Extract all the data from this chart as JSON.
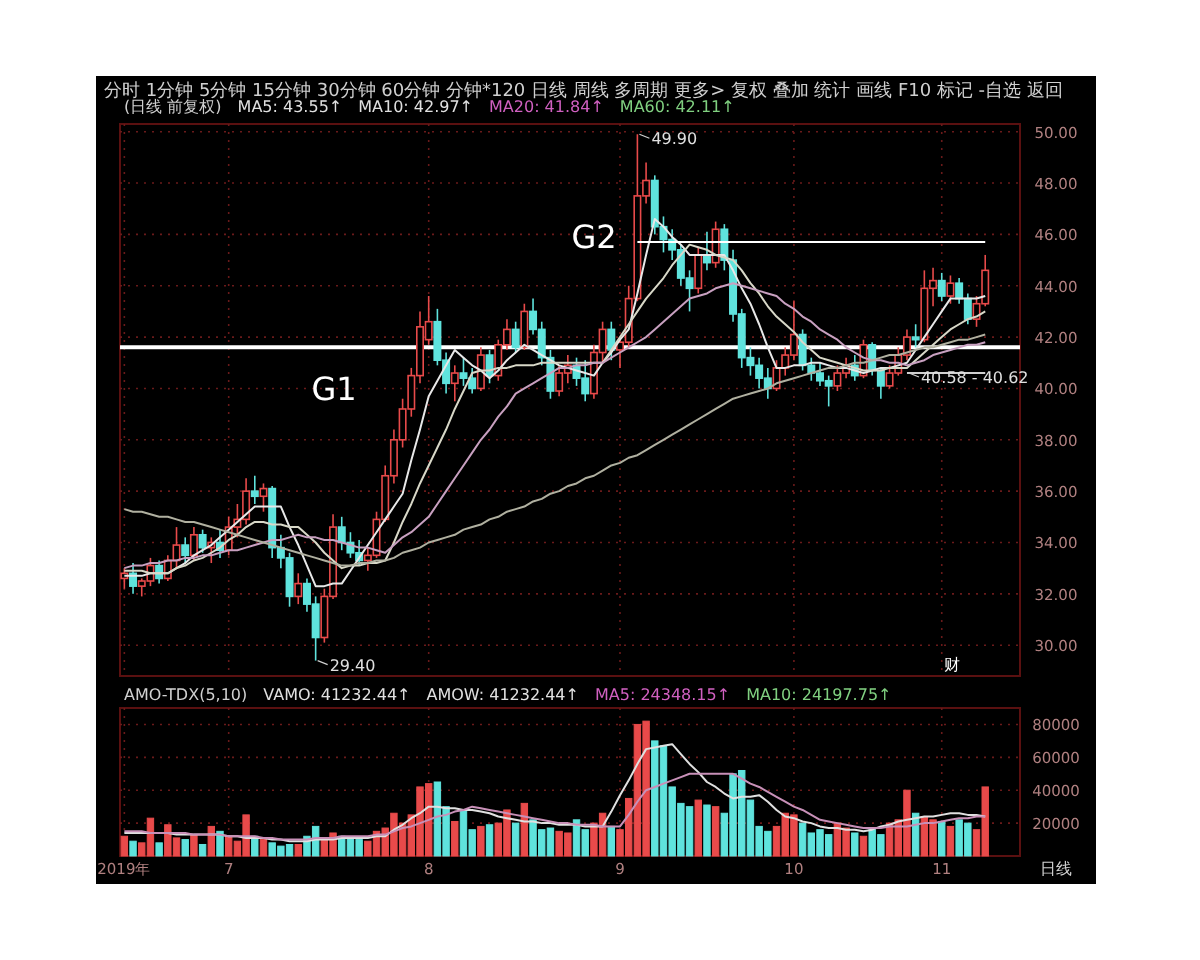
{
  "chart_data": [
    {
      "type": "candlestick",
      "subtitle": "分时 1分钟 5分钟 15分钟 30分钟 60分钟 分钟*120 日线 周线 多周期 更多> 复权 叠加 统计 画线 F10 标记 -自选 返回",
      "title": "(日线 前复权)",
      "annotations": [
        "MA5: 43.55↑",
        "MA10: 42.97↑",
        "MA20: 41.84↑",
        "MA60: 42.11↑",
        "G1",
        "G2",
        "财",
        "49.90",
        "29.40",
        "40.58 - 40.62"
      ],
      "categories": [
        null,
        null,
        null,
        null,
        null,
        null,
        null,
        null,
        null,
        null,
        null,
        null,
        null,
        null,
        null,
        null,
        null,
        null,
        null,
        null,
        null,
        null,
        null,
        null,
        null,
        null,
        null,
        null,
        null,
        null,
        null,
        null,
        null,
        null,
        null,
        null,
        null,
        null,
        null,
        null,
        null,
        null,
        null,
        null,
        null,
        null,
        null,
        null,
        null,
        null,
        null,
        null,
        null,
        null,
        null,
        null,
        null,
        null,
        null,
        null,
        null,
        null,
        null,
        null,
        null,
        null,
        null,
        null,
        null,
        null,
        null,
        null,
        null,
        null,
        null,
        null,
        null,
        null,
        null,
        null,
        null,
        null,
        null,
        null,
        null,
        null,
        null,
        null,
        null,
        null,
        null,
        null,
        null,
        null,
        null,
        null,
        null,
        null,
        null,
        null
      ],
      "ohlc": [
        [
          32.6,
          33.0,
          32.2,
          32.8
        ],
        [
          32.8,
          33.2,
          32.0,
          32.3
        ],
        [
          32.3,
          32.6,
          31.9,
          32.5
        ],
        [
          32.5,
          33.4,
          32.3,
          33.1
        ],
        [
          33.1,
          33.3,
          32.4,
          32.6
        ],
        [
          32.6,
          33.5,
          32.5,
          33.3
        ],
        [
          33.3,
          34.6,
          33.0,
          33.9
        ],
        [
          33.9,
          34.2,
          33.2,
          33.5
        ],
        [
          33.5,
          34.6,
          33.3,
          34.3
        ],
        [
          34.3,
          34.5,
          33.6,
          33.8
        ],
        [
          33.8,
          34.2,
          33.2,
          34.0
        ],
        [
          34.0,
          34.5,
          33.4,
          33.7
        ],
        [
          33.7,
          35.0,
          33.5,
          34.6
        ],
        [
          34.6,
          35.5,
          34.2,
          34.9
        ],
        [
          34.9,
          36.5,
          34.7,
          36.0
        ],
        [
          36.0,
          36.6,
          35.5,
          35.8
        ],
        [
          35.8,
          36.3,
          35.2,
          36.1
        ],
        [
          36.1,
          36.2,
          33.4,
          33.8
        ],
        [
          33.8,
          34.3,
          33.0,
          33.4
        ],
        [
          33.4,
          33.6,
          31.5,
          31.9
        ],
        [
          31.9,
          32.8,
          31.6,
          32.4
        ],
        [
          32.4,
          32.6,
          31.3,
          31.6
        ],
        [
          31.6,
          31.9,
          29.4,
          30.3
        ],
        [
          30.3,
          32.2,
          30.1,
          31.9
        ],
        [
          31.9,
          35.1,
          31.8,
          34.6
        ],
        [
          34.6,
          35.0,
          33.7,
          34.0
        ],
        [
          34.0,
          34.4,
          33.4,
          33.6
        ],
        [
          33.6,
          34.1,
          33.1,
          33.3
        ],
        [
          33.3,
          33.8,
          32.9,
          33.5
        ],
        [
          33.5,
          35.2,
          33.4,
          34.9
        ],
        [
          34.9,
          37.0,
          34.8,
          36.6
        ],
        [
          36.6,
          38.4,
          36.3,
          38.0
        ],
        [
          38.0,
          39.6,
          37.7,
          39.2
        ],
        [
          39.2,
          40.8,
          38.9,
          40.5
        ],
        [
          40.5,
          43.0,
          40.2,
          42.4
        ],
        [
          41.9,
          43.6,
          41.7,
          42.6
        ],
        [
          42.6,
          43.1,
          40.9,
          41.1
        ],
        [
          41.1,
          41.4,
          39.8,
          40.2
        ],
        [
          40.2,
          40.9,
          39.5,
          40.6
        ],
        [
          40.6,
          41.2,
          40.1,
          40.4
        ],
        [
          40.4,
          40.8,
          39.8,
          40.0
        ],
        [
          40.0,
          41.6,
          39.9,
          41.3
        ],
        [
          41.3,
          41.5,
          40.2,
          40.5
        ],
        [
          40.5,
          41.9,
          40.3,
          41.7
        ],
        [
          41.7,
          42.7,
          41.5,
          42.3
        ],
        [
          42.3,
          42.6,
          41.4,
          41.6
        ],
        [
          41.6,
          43.3,
          41.5,
          43.0
        ],
        [
          43.0,
          43.5,
          42.1,
          42.3
        ],
        [
          42.3,
          42.6,
          40.9,
          41.2
        ],
        [
          41.2,
          41.5,
          39.6,
          39.9
        ],
        [
          39.9,
          40.9,
          39.7,
          40.6
        ],
        [
          40.6,
          41.3,
          40.2,
          40.9
        ],
        [
          40.9,
          41.2,
          40.1,
          40.4
        ],
        [
          40.4,
          41.1,
          39.5,
          39.8
        ],
        [
          39.8,
          41.7,
          39.6,
          41.4
        ],
        [
          41.4,
          42.6,
          41.0,
          42.3
        ],
        [
          42.3,
          42.6,
          41.1,
          41.5
        ],
        [
          41.5,
          42.0,
          40.8,
          41.8
        ],
        [
          41.8,
          44.0,
          41.6,
          43.5
        ],
        [
          43.5,
          49.9,
          43.4,
          47.5
        ],
        [
          47.5,
          48.8,
          47.2,
          48.1
        ],
        [
          48.1,
          48.3,
          46.0,
          46.3
        ],
        [
          46.3,
          46.7,
          45.3,
          45.8
        ],
        [
          45.8,
          46.2,
          45.0,
          45.4
        ],
        [
          45.4,
          45.6,
          44.0,
          44.3
        ],
        [
          44.3,
          44.6,
          43.0,
          43.9
        ],
        [
          43.9,
          45.5,
          43.7,
          45.2
        ],
        [
          45.2,
          46.1,
          44.6,
          44.9
        ],
        [
          44.9,
          46.5,
          44.7,
          46.2
        ],
        [
          46.2,
          46.4,
          44.6,
          45.0
        ],
        [
          45.0,
          45.4,
          42.6,
          42.9
        ],
        [
          42.9,
          43.1,
          40.8,
          41.2
        ],
        [
          41.2,
          41.6,
          40.5,
          40.9
        ],
        [
          40.9,
          41.2,
          40.0,
          40.4
        ],
        [
          40.4,
          40.8,
          39.6,
          40.0
        ],
        [
          40.0,
          41.1,
          39.9,
          40.8
        ],
        [
          40.8,
          41.6,
          40.5,
          41.3
        ],
        [
          41.3,
          43.4,
          41.1,
          42.1
        ],
        [
          42.1,
          42.3,
          40.7,
          40.9
        ],
        [
          40.9,
          41.2,
          40.3,
          40.6
        ],
        [
          40.6,
          41.0,
          40.1,
          40.3
        ],
        [
          40.3,
          40.5,
          39.3,
          40.1
        ],
        [
          40.1,
          40.9,
          39.9,
          40.6
        ],
        [
          40.6,
          41.2,
          40.4,
          40.9
        ],
        [
          40.9,
          41.3,
          40.3,
          40.5
        ],
        [
          40.5,
          41.9,
          40.4,
          41.7
        ],
        [
          41.7,
          41.8,
          40.5,
          40.7
        ],
        [
          40.7,
          40.8,
          39.6,
          40.1
        ],
        [
          40.1,
          40.9,
          40.0,
          40.6
        ],
        [
          40.6,
          41.6,
          40.5,
          41.3
        ],
        [
          41.3,
          42.3,
          41.1,
          42.0
        ],
        [
          42.0,
          42.5,
          41.6,
          41.9
        ],
        [
          41.9,
          44.6,
          41.8,
          43.9
        ],
        [
          43.9,
          44.7,
          43.2,
          44.2
        ],
        [
          44.2,
          44.5,
          43.4,
          43.6
        ],
        [
          43.6,
          44.4,
          43.3,
          44.1
        ],
        [
          44.1,
          44.3,
          43.3,
          43.5
        ],
        [
          43.5,
          43.7,
          42.5,
          42.7
        ],
        [
          42.7,
          43.6,
          42.4,
          43.3
        ],
        [
          43.3,
          45.2,
          43.2,
          44.6
        ]
      ],
      "colors": [
        "#e84a4a",
        "#5fe3dd",
        "#e84a4a",
        "#e84a4a",
        "#5fe3dd",
        "#e84a4a",
        "#e84a4a",
        "#5fe3dd",
        "#e84a4a",
        "#5fe3dd",
        "#e84a4a",
        "#5fe3dd",
        "#e84a4a",
        "#e84a4a",
        "#e84a4a",
        "#5fe3dd",
        "#e84a4a",
        "#5fe3dd",
        "#5fe3dd",
        "#5fe3dd",
        "#e84a4a",
        "#5fe3dd",
        "#5fe3dd",
        "#e84a4a",
        "#e84a4a",
        "#5fe3dd",
        "#5fe3dd",
        "#5fe3dd",
        "#e84a4a",
        "#e84a4a",
        "#e84a4a",
        "#e84a4a",
        "#e84a4a",
        "#e84a4a",
        "#e84a4a",
        "#e84a4a",
        "#5fe3dd",
        "#5fe3dd",
        "#e84a4a",
        "#5fe3dd",
        "#5fe3dd",
        "#e84a4a",
        "#5fe3dd",
        "#e84a4a",
        "#e84a4a",
        "#5fe3dd",
        "#e84a4a",
        "#5fe3dd",
        "#5fe3dd",
        "#5fe3dd",
        "#e84a4a",
        "#e84a4a",
        "#5fe3dd",
        "#5fe3dd",
        "#e84a4a",
        "#e84a4a",
        "#5fe3dd",
        "#e84a4a",
        "#e84a4a",
        "#e84a4a",
        "#e84a4a",
        "#5fe3dd",
        "#5fe3dd",
        "#5fe3dd",
        "#5fe3dd",
        "#5fe3dd",
        "#e84a4a",
        "#5fe3dd",
        "#e84a4a",
        "#5fe3dd",
        "#5fe3dd",
        "#5fe3dd",
        "#5fe3dd",
        "#5fe3dd",
        "#5fe3dd",
        "#e84a4a",
        "#e84a4a",
        "#e84a4a",
        "#5fe3dd",
        "#5fe3dd",
        "#5fe3dd",
        "#5fe3dd",
        "#e84a4a",
        "#e84a4a",
        "#5fe3dd",
        "#e84a4a",
        "#5fe3dd",
        "#5fe3dd",
        "#e84a4a",
        "#e84a4a",
        "#e84a4a",
        "#5fe3dd",
        "#e84a4a",
        "#e84a4a",
        "#5fe3dd",
        "#e84a4a",
        "#5fe3dd",
        "#5fe3dd",
        "#e84a4a",
        "#e84a4a"
      ],
      "series": [
        {
          "type": "line",
          "color": "#e8e8e8",
          "values": [
            32.7,
            32.7,
            32.7,
            32.8,
            32.8,
            32.8,
            33.0,
            33.2,
            33.5,
            33.7,
            33.9,
            34.2,
            34.5,
            34.8,
            35.1,
            35.4,
            35.4,
            35.4,
            35.4,
            34.6,
            33.9,
            33.1,
            32.3,
            32.3,
            32.4,
            32.4,
            32.9,
            33.4,
            33.9,
            34.4,
            34.9,
            35.4,
            35.9,
            37.2,
            38.4,
            39.7,
            40.3,
            40.9,
            41.5,
            41.2,
            40.9,
            40.7,
            40.4,
            40.7,
            41.1,
            41.4,
            41.7,
            41.5,
            41.3,
            41.1,
            40.9,
            40.8,
            40.7,
            40.6,
            40.5,
            41.0,
            41.4,
            41.9,
            42.3,
            43.7,
            45.2,
            46.6,
            46.3,
            45.9,
            45.6,
            45.2,
            45.2,
            45.2,
            45.2,
            45.2,
            44.6,
            43.9,
            43.3,
            42.5,
            41.6,
            40.8,
            40.8,
            40.9,
            40.9,
            41.0,
            41.0,
            40.9,
            40.8,
            40.8,
            40.7,
            40.6,
            40.7,
            40.8,
            40.8,
            40.9,
            41.0,
            41.5,
            42.0,
            42.5,
            43.0,
            43.5,
            43.5,
            43.5,
            43.5,
            43.6
          ]
        },
        {
          "type": "line",
          "color": "#d8d8c8",
          "values": [
            32.9,
            32.9,
            32.9,
            32.8,
            32.8,
            32.8,
            33.0,
            33.1,
            33.3,
            33.4,
            33.6,
            33.8,
            34.1,
            34.3,
            34.6,
            34.8,
            34.8,
            34.7,
            34.7,
            34.6,
            34.6,
            34.3,
            34.0,
            33.6,
            33.3,
            33.0,
            33.1,
            33.1,
            33.2,
            33.2,
            33.3,
            34.0,
            34.8,
            35.5,
            36.3,
            37.0,
            37.7,
            38.4,
            39.2,
            39.9,
            40.6,
            40.7,
            40.7,
            40.8,
            40.8,
            40.9,
            40.9,
            40.9,
            41.0,
            41.0,
            41.0,
            41.0,
            41.0,
            41.0,
            41.0,
            41.0,
            41.5,
            42.0,
            42.5,
            43.0,
            43.5,
            43.9,
            44.3,
            44.8,
            45.2,
            45.6,
            45.5,
            45.4,
            45.2,
            45.1,
            45.0,
            44.6,
            44.1,
            43.7,
            43.2,
            42.8,
            42.5,
            42.2,
            41.8,
            41.5,
            41.2,
            41.1,
            41.0,
            40.9,
            40.8,
            40.7,
            40.7,
            40.7,
            40.8,
            40.8,
            40.8,
            41.1,
            41.4,
            41.7,
            42.0,
            42.3,
            42.5,
            42.7,
            42.8,
            43.0
          ]
        },
        {
          "type": "line",
          "color": "#c8a0c0",
          "values": [
            33.0,
            33.1,
            33.1,
            33.2,
            33.2,
            33.3,
            33.3,
            33.4,
            33.4,
            33.5,
            33.5,
            33.6,
            33.7,
            33.7,
            33.8,
            33.9,
            34.0,
            34.1,
            34.1,
            34.2,
            34.3,
            34.2,
            34.2,
            34.1,
            34.1,
            34.0,
            33.9,
            33.8,
            33.8,
            33.7,
            33.6,
            33.9,
            34.2,
            34.4,
            34.7,
            35.0,
            35.5,
            36.0,
            36.5,
            37.0,
            37.5,
            38.0,
            38.4,
            38.9,
            39.3,
            39.8,
            40.0,
            40.2,
            40.4,
            40.6,
            40.8,
            40.8,
            40.9,
            40.9,
            41.0,
            41.0,
            41.2,
            41.4,
            41.6,
            41.8,
            42.0,
            42.3,
            42.6,
            42.9,
            43.2,
            43.5,
            43.6,
            43.7,
            43.9,
            44.0,
            44.1,
            44.0,
            43.9,
            43.8,
            43.7,
            43.6,
            43.3,
            43.1,
            42.8,
            42.6,
            42.3,
            42.1,
            41.9,
            41.6,
            41.4,
            41.2,
            41.1,
            41.1,
            41.0,
            41.0,
            40.9,
            41.0,
            41.1,
            41.3,
            41.4,
            41.5,
            41.6,
            41.7,
            41.7,
            41.8
          ]
        },
        {
          "type": "line",
          "color": "#b0b0a0",
          "values": [
            35.3,
            35.2,
            35.2,
            35.1,
            35.0,
            35.0,
            34.9,
            34.8,
            34.8,
            34.7,
            34.6,
            34.5,
            34.4,
            34.3,
            34.2,
            34.1,
            34.0,
            33.9,
            33.8,
            33.7,
            33.6,
            33.5,
            33.4,
            33.3,
            33.2,
            33.1,
            33.1,
            33.2,
            33.2,
            33.3,
            33.3,
            33.4,
            33.6,
            33.7,
            33.8,
            34.0,
            34.1,
            34.2,
            34.3,
            34.5,
            34.6,
            34.7,
            34.9,
            35.0,
            35.2,
            35.3,
            35.4,
            35.6,
            35.7,
            35.9,
            36.0,
            36.2,
            36.3,
            36.5,
            36.6,
            36.8,
            37.0,
            37.1,
            37.3,
            37.4,
            37.6,
            37.8,
            38.0,
            38.2,
            38.4,
            38.6,
            38.8,
            39.0,
            39.2,
            39.4,
            39.6,
            39.7,
            39.8,
            39.9,
            40.0,
            40.2,
            40.3,
            40.4,
            40.5,
            40.6,
            40.7,
            40.8,
            40.8,
            40.9,
            41.0,
            41.0,
            41.1,
            41.2,
            41.3,
            41.3,
            41.4,
            41.5,
            41.6,
            41.6,
            41.7,
            41.8,
            41.9,
            41.9,
            42.0,
            42.1
          ]
        },
        {
          "type": "line",
          "color": "#ffffff",
          "values": [
            null,
            null,
            null,
            null,
            null,
            null,
            null,
            null,
            null,
            null,
            null,
            null,
            null,
            null,
            null,
            null,
            null,
            null,
            null,
            null,
            null,
            null,
            null,
            null,
            null,
            null,
            null,
            null,
            null,
            null,
            null,
            null,
            null,
            null,
            null,
            null,
            null,
            null,
            null,
            null,
            null,
            null,
            null,
            null,
            null,
            null,
            null,
            null,
            null,
            null,
            null,
            null,
            null,
            null,
            null,
            null,
            null,
            null,
            null,
            45.7,
            45.7,
            45.7,
            45.7,
            45.7,
            45.7,
            45.7,
            45.7,
            45.7,
            45.7,
            45.7,
            45.7,
            45.7,
            45.7,
            45.7,
            45.7,
            45.7,
            45.7,
            45.7,
            45.7,
            45.7,
            45.7,
            45.7,
            45.7,
            45.7,
            45.7,
            45.7,
            45.7,
            45.7,
            45.7,
            45.7,
            45.7,
            45.7,
            45.7,
            45.7,
            45.7,
            45.7,
            45.7,
            45.7,
            45.7,
            45.7
          ]
        },
        {
          "type": "line",
          "color": "#d0d0d0",
          "values": [
            null,
            null,
            null,
            null,
            null,
            null,
            null,
            null,
            null,
            null,
            null,
            null,
            null,
            null,
            null,
            null,
            null,
            null,
            null,
            null,
            null,
            null,
            null,
            null,
            null,
            null,
            null,
            null,
            null,
            null,
            null,
            null,
            null,
            null,
            null,
            null,
            null,
            null,
            null,
            null,
            null,
            null,
            null,
            null,
            null,
            null,
            null,
            null,
            null,
            null,
            null,
            null,
            null,
            null,
            null,
            null,
            null,
            null,
            null,
            null,
            null,
            null,
            null,
            null,
            null,
            null,
            null,
            null,
            null,
            null,
            null,
            null,
            null,
            null,
            null,
            null,
            null,
            null,
            null,
            null,
            null,
            null,
            null,
            null,
            null,
            null,
            null,
            null,
            null,
            null,
            40.6,
            40.6,
            40.6,
            40.6,
            40.6,
            40.6,
            40.6,
            40.6,
            40.6,
            40.6
          ]
        }
      ],
      "ref_lines": [
        {
          "axis": "y",
          "value": 41.6,
          "color": "#ffffff"
        }
      ],
      "ylim": [
        28.8,
        50.3
      ],
      "yticks": [
        {
          "value": 30,
          "label": "30.00"
        },
        {
          "value": 32,
          "label": "32.00"
        },
        {
          "value": 34,
          "label": "34.00"
        },
        {
          "value": 36,
          "label": "36.00"
        },
        {
          "value": 38,
          "label": "38.00"
        },
        {
          "value": 40,
          "label": "40.00"
        },
        {
          "value": 42,
          "label": "42.00"
        },
        {
          "value": 44,
          "label": "44.00"
        },
        {
          "value": 46,
          "label": "46.00"
        },
        {
          "value": 48,
          "label": "48.00"
        },
        {
          "value": 50,
          "label": "50.00"
        }
      ],
      "grid": true
    },
    {
      "type": "bar",
      "title": "AMO-TDX(5,10)",
      "annotations": [
        "VAMO: 41232.44↑",
        "AMOW: 41232.44↑",
        "MA5: 24348.15↑",
        "MA10: 24197.75↑",
        "日线"
      ],
      "categories": [
        "2019年",
        null,
        null,
        null,
        null,
        null,
        null,
        null,
        null,
        null,
        null,
        null,
        "7",
        null,
        null,
        null,
        null,
        null,
        null,
        null,
        null,
        null,
        null,
        null,
        null,
        null,
        null,
        null,
        null,
        null,
        null,
        null,
        null,
        null,
        null,
        "8",
        null,
        null,
        null,
        null,
        null,
        null,
        null,
        null,
        null,
        null,
        null,
        null,
        null,
        null,
        null,
        null,
        null,
        null,
        null,
        null,
        null,
        "9",
        null,
        null,
        null,
        null,
        null,
        null,
        null,
        null,
        null,
        null,
        null,
        null,
        null,
        null,
        null,
        null,
        null,
        null,
        null,
        "10",
        null,
        null,
        null,
        null,
        null,
        null,
        null,
        null,
        null,
        null,
        null,
        null,
        null,
        null,
        null,
        null,
        "11",
        null,
        null,
        null,
        null,
        null
      ],
      "series": [
        {
          "type": "bar",
          "values": [
            12000,
            9000,
            8000,
            23000,
            8000,
            19000,
            11000,
            10000,
            13000,
            7000,
            18000,
            15000,
            12000,
            9000,
            25000,
            12000,
            10000,
            8000,
            6000,
            7000,
            7000,
            12000,
            18000,
            10000,
            14000,
            12000,
            11000,
            10000,
            9000,
            15000,
            17000,
            26000,
            20000,
            25000,
            42000,
            44000,
            45000,
            30000,
            21000,
            28000,
            16000,
            18000,
            19000,
            20000,
            28000,
            20000,
            32000,
            22000,
            16000,
            17000,
            15000,
            14000,
            22000,
            16000,
            20000,
            26000,
            18000,
            16000,
            35000,
            80000,
            82000,
            70000,
            67000,
            42000,
            32000,
            30000,
            34000,
            31000,
            30000,
            26000,
            50000,
            52000,
            34000,
            18000,
            15000,
            18000,
            26000,
            25000,
            20000,
            14000,
            16000,
            13000,
            20000,
            17000,
            14000,
            12000,
            16000,
            13000,
            20000,
            22000,
            40000,
            26000,
            24000,
            22000,
            21000,
            18000,
            22000,
            20000,
            16000,
            42000
          ],
          "colors": [
            "#e84a4a",
            "#5fe3dd",
            "#e84a4a",
            "#e84a4a",
            "#5fe3dd",
            "#e84a4a",
            "#e84a4a",
            "#5fe3dd",
            "#e84a4a",
            "#5fe3dd",
            "#e84a4a",
            "#5fe3dd",
            "#e84a4a",
            "#e84a4a",
            "#e84a4a",
            "#5fe3dd",
            "#e84a4a",
            "#5fe3dd",
            "#5fe3dd",
            "#5fe3dd",
            "#e84a4a",
            "#5fe3dd",
            "#5fe3dd",
            "#e84a4a",
            "#e84a4a",
            "#5fe3dd",
            "#5fe3dd",
            "#5fe3dd",
            "#e84a4a",
            "#e84a4a",
            "#e84a4a",
            "#e84a4a",
            "#e84a4a",
            "#e84a4a",
            "#e84a4a",
            "#e84a4a",
            "#5fe3dd",
            "#5fe3dd",
            "#e84a4a",
            "#5fe3dd",
            "#5fe3dd",
            "#e84a4a",
            "#5fe3dd",
            "#e84a4a",
            "#e84a4a",
            "#5fe3dd",
            "#e84a4a",
            "#5fe3dd",
            "#5fe3dd",
            "#5fe3dd",
            "#e84a4a",
            "#e84a4a",
            "#5fe3dd",
            "#5fe3dd",
            "#e84a4a",
            "#e84a4a",
            "#5fe3dd",
            "#e84a4a",
            "#e84a4a",
            "#e84a4a",
            "#e84a4a",
            "#5fe3dd",
            "#5fe3dd",
            "#5fe3dd",
            "#5fe3dd",
            "#5fe3dd",
            "#e84a4a",
            "#5fe3dd",
            "#e84a4a",
            "#5fe3dd",
            "#5fe3dd",
            "#5fe3dd",
            "#5fe3dd",
            "#5fe3dd",
            "#5fe3dd",
            "#e84a4a",
            "#e84a4a",
            "#e84a4a",
            "#5fe3dd",
            "#5fe3dd",
            "#5fe3dd",
            "#5fe3dd",
            "#e84a4a",
            "#e84a4a",
            "#5fe3dd",
            "#e84a4a",
            "#5fe3dd",
            "#5fe3dd",
            "#e84a4a",
            "#e84a4a",
            "#e84a4a",
            "#5fe3dd",
            "#e84a4a",
            "#e84a4a",
            "#5fe3dd",
            "#e84a4a",
            "#5fe3dd",
            "#5fe3dd",
            "#e84a4a",
            "#e84a4a"
          ]
        },
        {
          "type": "line",
          "color": "#e0e0e0",
          "values": [
            14000,
            14000,
            14000,
            14000,
            14000,
            14000,
            13000,
            13000,
            13000,
            13000,
            13000,
            13000,
            12000,
            12000,
            11000,
            11000,
            11000,
            10000,
            10000,
            9000,
            9000,
            9000,
            10000,
            10000,
            10000,
            11000,
            11000,
            11000,
            11000,
            12000,
            12000,
            16000,
            19000,
            23000,
            26000,
            30000,
            30000,
            29000,
            29000,
            28000,
            28000,
            27000,
            26000,
            24000,
            23000,
            22000,
            21000,
            21000,
            20000,
            20000,
            19000,
            19000,
            19000,
            18000,
            18000,
            18000,
            27000,
            37000,
            46000,
            56000,
            65000,
            66000,
            67000,
            68000,
            62000,
            56000,
            51000,
            45000,
            42000,
            38000,
            35000,
            36000,
            36000,
            37000,
            33000,
            28000,
            24000,
            23000,
            21000,
            20000,
            18000,
            17000,
            17000,
            16000,
            16000,
            15000,
            16000,
            18000,
            19000,
            21000,
            22000,
            23000,
            24000,
            24000,
            25000,
            26000,
            26000,
            25000,
            25000,
            24000
          ]
        },
        {
          "type": "line",
          "color": "#c890b8",
          "values": [
            15000,
            15000,
            15000,
            14000,
            14000,
            14000,
            14000,
            14000,
            13000,
            13000,
            13000,
            13000,
            12000,
            12000,
            12000,
            12000,
            11000,
            11000,
            10000,
            10000,
            10000,
            10000,
            11000,
            11000,
            11000,
            12000,
            12000,
            12000,
            12000,
            13000,
            13000,
            15000,
            17000,
            18000,
            20000,
            22000,
            24000,
            25000,
            27000,
            28000,
            30000,
            29000,
            28000,
            27000,
            26000,
            25000,
            24000,
            23000,
            22000,
            21000,
            20000,
            20000,
            19000,
            19000,
            19000,
            18000,
            18000,
            18000,
            25000,
            33000,
            40000,
            42000,
            44000,
            46000,
            48000,
            50000,
            50000,
            50000,
            50000,
            50000,
            50000,
            47000,
            44000,
            42000,
            39000,
            36000,
            33000,
            30000,
            28000,
            25000,
            22000,
            21000,
            20000,
            19000,
            18000,
            17000,
            17000,
            17000,
            18000,
            18000,
            18000,
            19000,
            20000,
            20000,
            21000,
            22000,
            23000,
            23000,
            24000,
            24000
          ]
        }
      ],
      "ylim": [
        0,
        90000
      ],
      "yticks": [
        20000,
        40000,
        60000,
        80000
      ],
      "grid": true
    }
  ]
}
